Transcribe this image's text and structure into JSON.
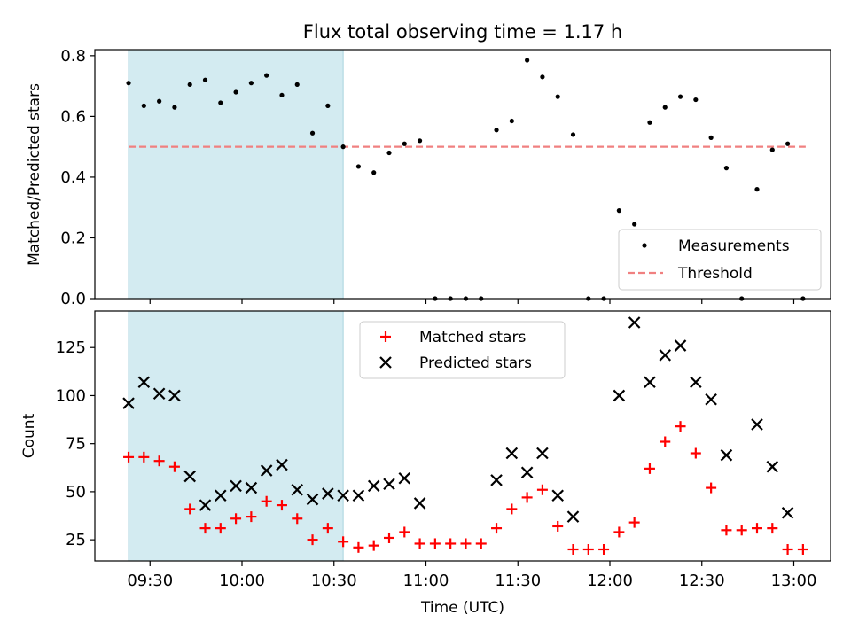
{
  "chart_data": [
    {
      "type": "scatter",
      "title": "Flux total observing time = 1.17 h",
      "xlabel": "",
      "ylabel": "Matched/Predicted stars",
      "ylim": [
        0,
        0.82
      ],
      "yticks": [
        "0.0",
        "0.2",
        "0.4",
        "0.6",
        "0.8"
      ],
      "ytick_values": [
        0,
        0.2,
        0.4,
        0.6,
        0.8
      ],
      "legend_position": "lower-right",
      "threshold": {
        "name": "Threshold",
        "value": 0.5,
        "color": "#f08080"
      },
      "highlight_span": {
        "start_min": 563,
        "end_min": 633,
        "color": "#d3ebf1"
      },
      "series": [
        {
          "name": "Measurements",
          "color": "#000000",
          "x_min": [
            563,
            568,
            573,
            578,
            583,
            588,
            593,
            598,
            603,
            608,
            613,
            618,
            623,
            628,
            633,
            638,
            643,
            648,
            653,
            658,
            663,
            668,
            673,
            678,
            683,
            688,
            693,
            698,
            703,
            708,
            713,
            718,
            723,
            728,
            733,
            738,
            743,
            748,
            753,
            758,
            763,
            768,
            773,
            778,
            783
          ],
          "values": [
            0.71,
            0.635,
            0.65,
            0.63,
            0.705,
            0.72,
            0.645,
            0.68,
            0.71,
            0.735,
            0.67,
            0.705,
            0.545,
            0.635,
            0.5,
            0.435,
            0.415,
            0.48,
            0.51,
            0.52,
            0,
            0,
            0,
            0,
            0.555,
            0.585,
            0.785,
            0.73,
            0.665,
            0.54,
            0,
            0,
            0.29,
            0.245,
            0.58,
            0.63,
            0.665,
            0.655,
            0.53,
            0.43,
            0,
            0.36,
            0.49,
            0.51,
            0
          ]
        }
      ]
    },
    {
      "type": "scatter",
      "xlabel": "Time (UTC)",
      "ylabel": "Count",
      "ylim": [
        14,
        144
      ],
      "yticks": [
        "25",
        "50",
        "75",
        "100",
        "125"
      ],
      "ytick_values": [
        25,
        50,
        75,
        100,
        125
      ],
      "xticks": [
        "09:30",
        "10:00",
        "10:30",
        "11:00",
        "11:30",
        "12:00",
        "12:30",
        "13:00"
      ],
      "xtick_values_min": [
        570,
        600,
        630,
        660,
        690,
        720,
        750,
        780
      ],
      "xlim_min": [
        552,
        792
      ],
      "legend_position": "top-center",
      "highlight_span": {
        "start_min": 563,
        "end_min": 633,
        "color": "#d3ebf1"
      },
      "series": [
        {
          "name": "Matched stars",
          "marker": "plus",
          "color": "#ff0000",
          "x_min": [
            563,
            568,
            573,
            578,
            583,
            588,
            593,
            598,
            603,
            608,
            613,
            618,
            623,
            628,
            633,
            638,
            643,
            648,
            653,
            658,
            663,
            668,
            673,
            678,
            683,
            688,
            693,
            698,
            703,
            708,
            713,
            718,
            723,
            728,
            733,
            738,
            743,
            748,
            753,
            758,
            763,
            768,
            773,
            778,
            783
          ],
          "values": [
            68,
            68,
            66,
            63,
            41,
            31,
            31,
            36,
            37,
            45,
            43,
            36,
            25,
            31,
            24,
            21,
            22,
            26,
            29,
            23,
            23,
            23,
            23,
            23,
            31,
            41,
            47,
            51,
            32,
            20,
            20,
            20,
            29,
            34,
            62,
            76,
            84,
            70,
            52,
            30,
            30,
            31,
            31,
            20,
            20
          ]
        },
        {
          "name": "Predicted stars",
          "marker": "x",
          "color": "#000000",
          "x_min": [
            563,
            568,
            573,
            578,
            583,
            588,
            593,
            598,
            603,
            608,
            613,
            618,
            623,
            628,
            633,
            638,
            643,
            648,
            653,
            658,
            683,
            688,
            693,
            698,
            703,
            708,
            723,
            728,
            733,
            738,
            743,
            748,
            753,
            758,
            768,
            773,
            778
          ],
          "values": [
            96,
            107,
            101,
            100,
            58,
            43,
            48,
            53,
            52,
            61,
            64,
            51,
            46,
            49,
            48,
            48,
            53,
            54,
            57,
            44,
            56,
            70,
            60,
            70,
            48,
            37,
            100,
            138,
            107,
            121,
            126,
            107,
            98,
            69,
            85,
            63,
            39
          ]
        }
      ]
    }
  ]
}
